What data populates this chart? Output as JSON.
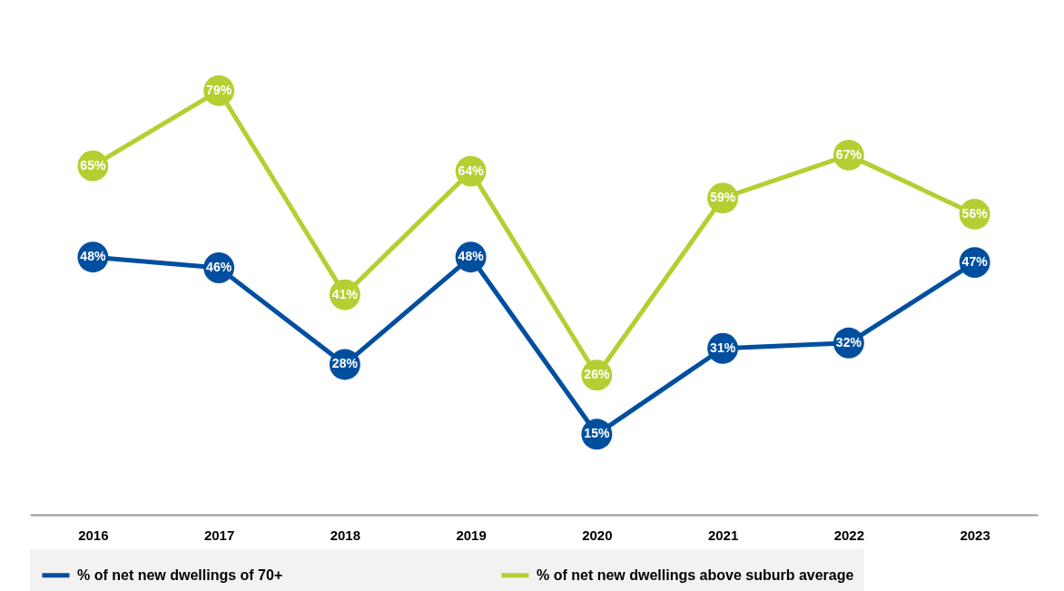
{
  "chart_data": {
    "type": "line",
    "categories": [
      "2016",
      "2017",
      "2018",
      "2019",
      "2020",
      "2021",
      "2022",
      "2023"
    ],
    "series": [
      {
        "name": "% of net new dwellings of 70+",
        "color": "#004f9f",
        "values": [
          48,
          46,
          28,
          48,
          15,
          31,
          32,
          47
        ],
        "value_labels": [
          "48%",
          "46%",
          "28%",
          "48%",
          "15%",
          "31%",
          "32%",
          "47%"
        ]
      },
      {
        "name": "% of net new dwellings above suburb average",
        "color": "#b5cf32",
        "values": [
          65,
          79,
          41,
          64,
          26,
          59,
          67,
          56
        ],
        "value_labels": [
          "65%",
          "79%",
          "41%",
          "64%",
          "26%",
          "59%",
          "67%",
          "56%"
        ]
      }
    ],
    "marker": "circle",
    "line_style": "solid",
    "legend": "bottom"
  }
}
